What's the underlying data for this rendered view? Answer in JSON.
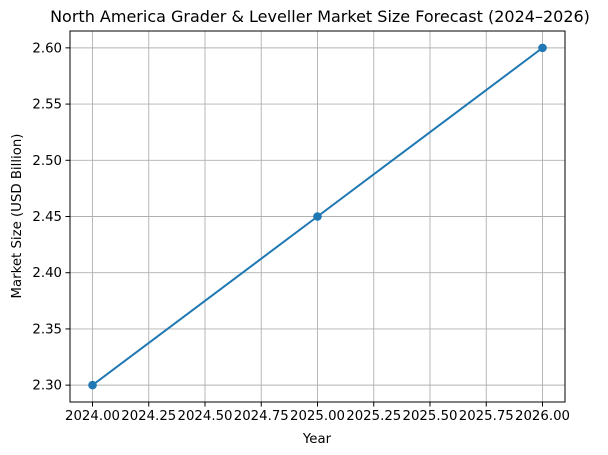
{
  "chart_data": {
    "type": "line",
    "title": "North America Grader & Leveller Market Size Forecast (2024–2026)",
    "xlabel": "Year",
    "ylabel": "Market Size (USD Billion)",
    "x": [
      2024,
      2025,
      2026
    ],
    "series": [
      {
        "name": "Market Size",
        "values": [
          2.3,
          2.45,
          2.6
        ]
      }
    ],
    "xlim": [
      2023.9,
      2026.1
    ],
    "ylim": [
      2.285,
      2.615
    ],
    "xticks": {
      "values": [
        2024.0,
        2024.25,
        2024.5,
        2024.75,
        2025.0,
        2025.25,
        2025.5,
        2025.75,
        2026.0
      ],
      "labels": [
        "2024.00",
        "2024.25",
        "2024.50",
        "2024.75",
        "2025.00",
        "2025.25",
        "2025.50",
        "2025.75",
        "2026.00"
      ]
    },
    "yticks": {
      "values": [
        2.3,
        2.35,
        2.4,
        2.45,
        2.5,
        2.55,
        2.6
      ],
      "labels": [
        "2.30",
        "2.35",
        "2.40",
        "2.45",
        "2.50",
        "2.55",
        "2.60"
      ]
    },
    "grid": true,
    "legend": "none",
    "marker": "circle",
    "colors": {
      "line": "#1f77b4",
      "marker": "#1f77b4",
      "grid": "#b0b0b0",
      "spine": "#000000",
      "text": "#000000",
      "background": "#ffffff"
    }
  }
}
